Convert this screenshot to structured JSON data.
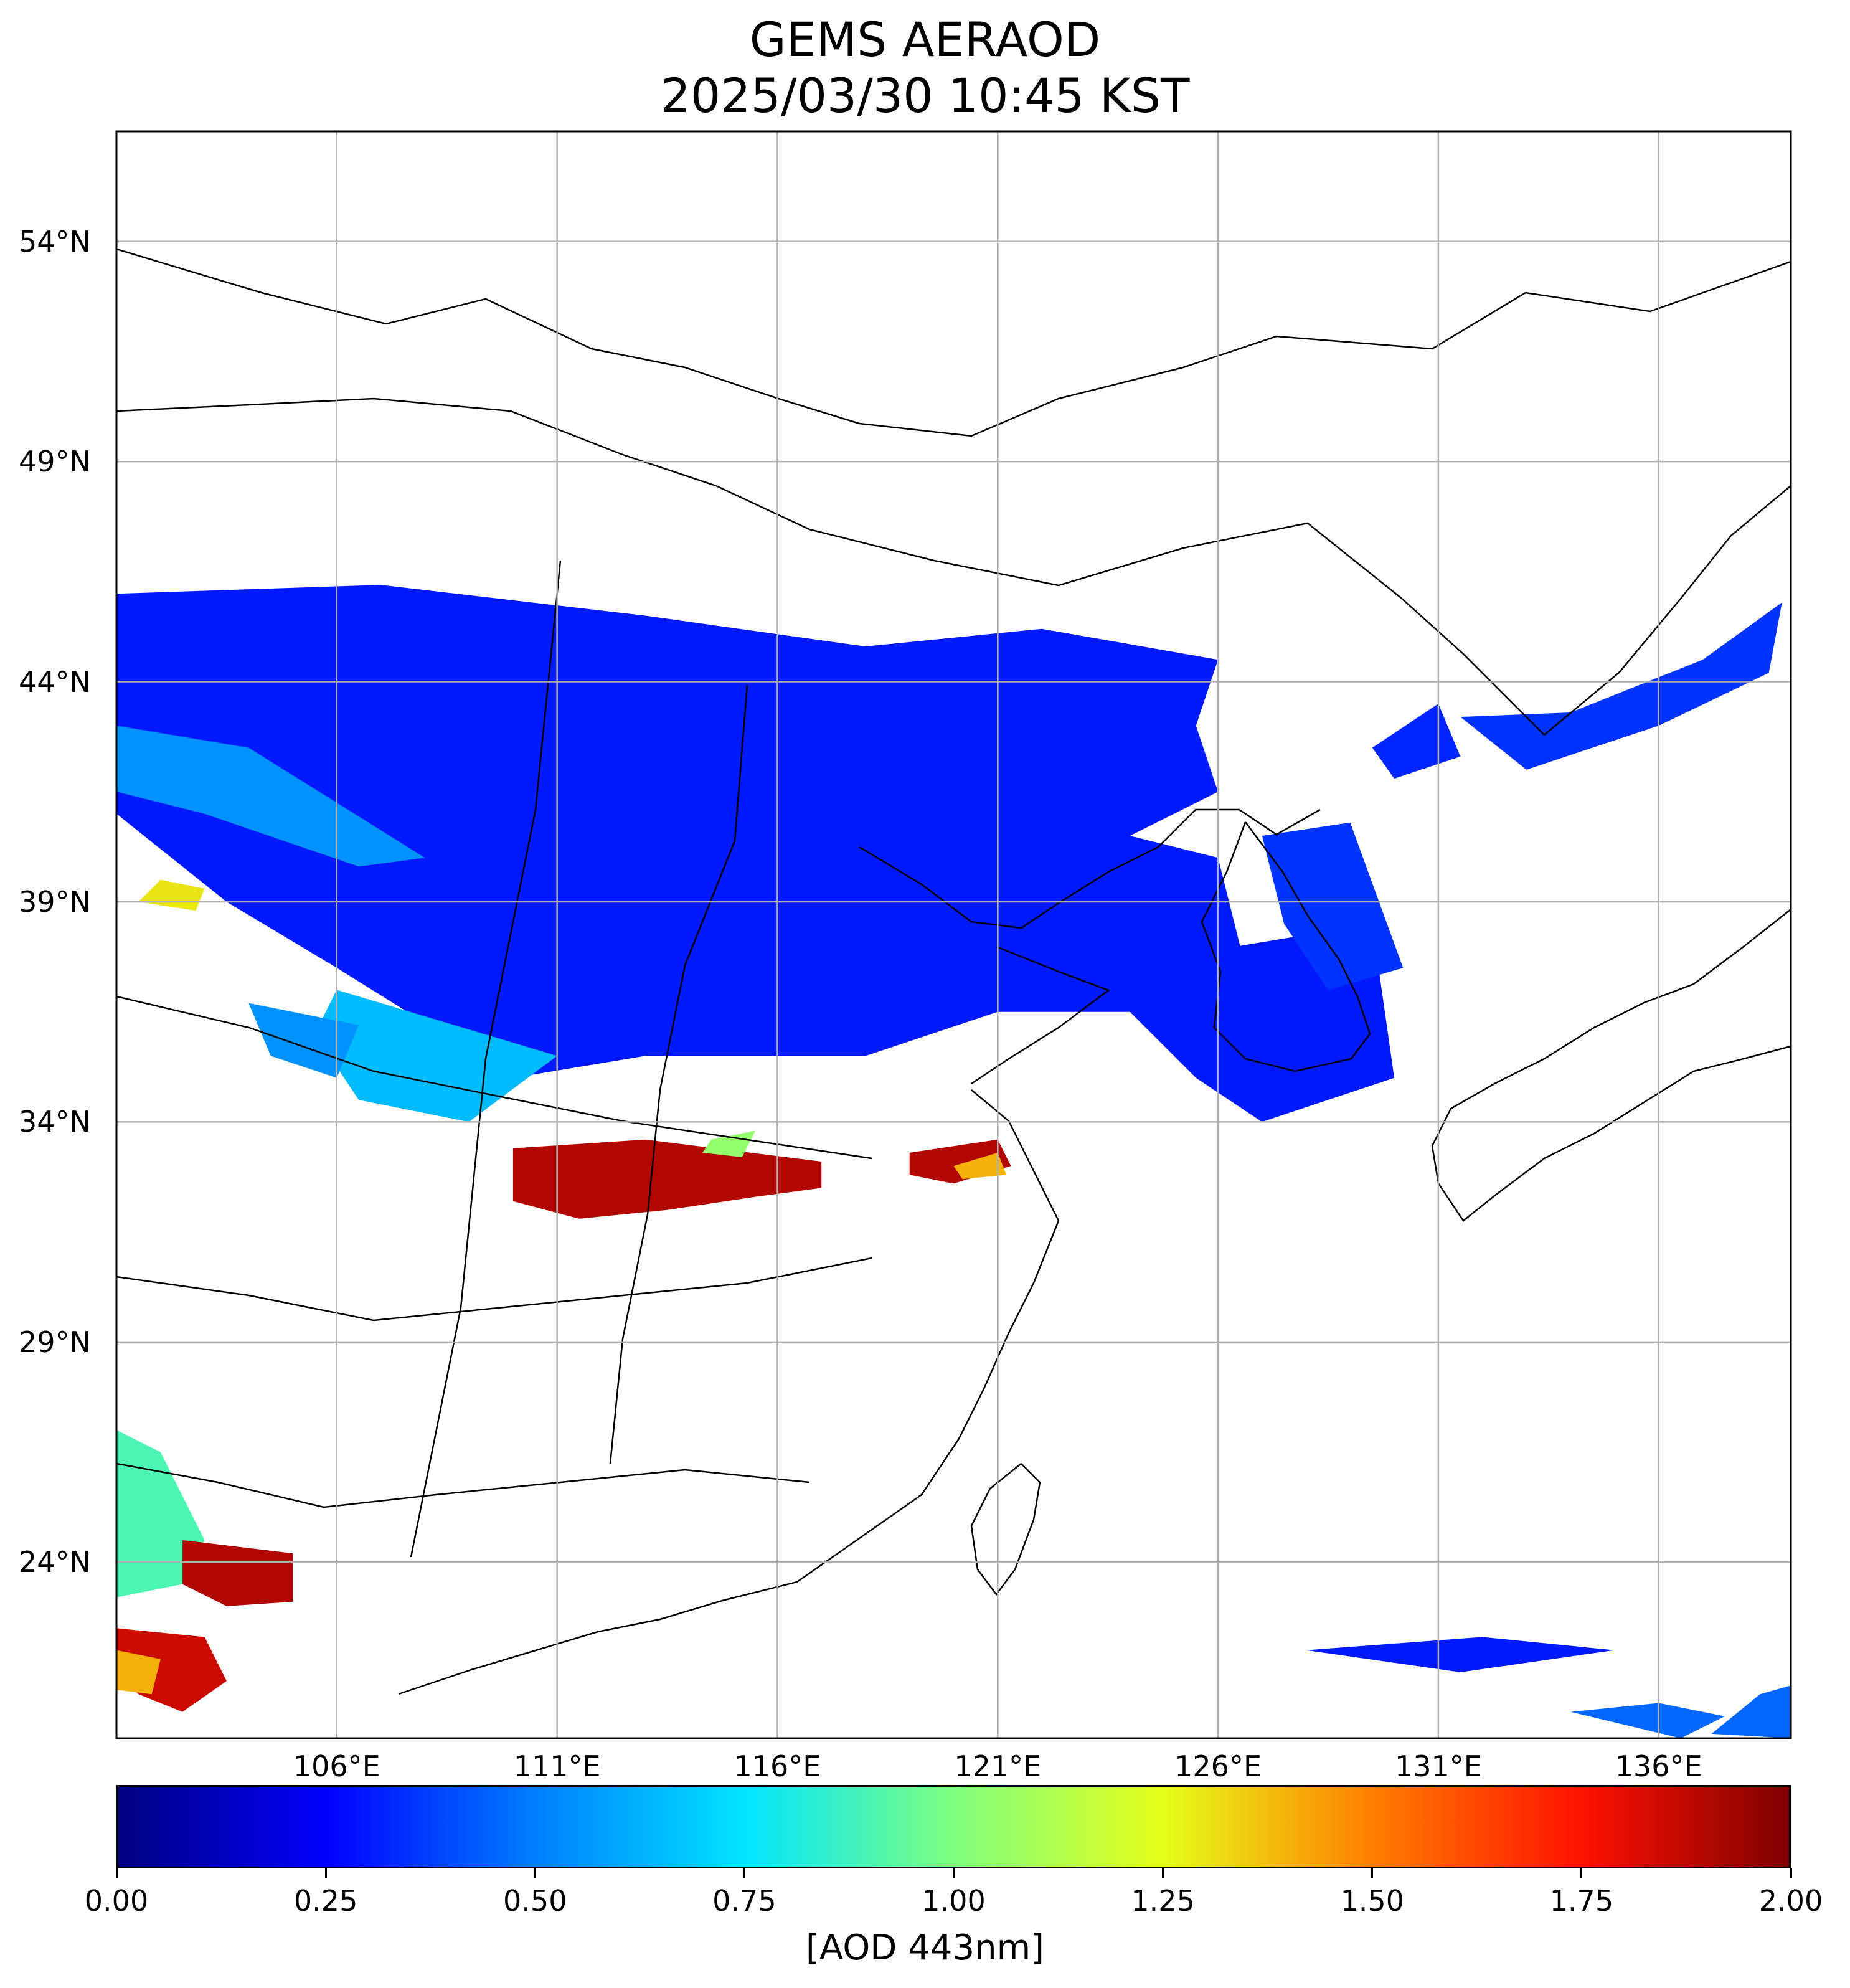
{
  "header": {
    "title": "GEMS AERAOD",
    "subtitle": "2025/03/30 10:45 KST"
  },
  "map": {
    "projection": "equirectangular",
    "lon_range": [
      101.0,
      139.0
    ],
    "lat_range": [
      20.0,
      56.5
    ],
    "gridlines": true,
    "lat_ticks": [
      {
        "value": 54,
        "label": "54°N"
      },
      {
        "value": 49,
        "label": "49°N"
      },
      {
        "value": 44,
        "label": "44°N"
      },
      {
        "value": 39,
        "label": "39°N"
      },
      {
        "value": 34,
        "label": "34°N"
      },
      {
        "value": 29,
        "label": "29°N"
      },
      {
        "value": 24,
        "label": "24°N"
      }
    ],
    "lon_ticks": [
      {
        "value": 106,
        "label": "106°E"
      },
      {
        "value": 111,
        "label": "111°E"
      },
      {
        "value": 116,
        "label": "116°E"
      },
      {
        "value": 121,
        "label": "121°E"
      },
      {
        "value": 126,
        "label": "126°E"
      },
      {
        "value": 131,
        "label": "131°E"
      },
      {
        "value": 136,
        "label": "136°E"
      }
    ],
    "aod_regions": [
      {
        "level": 0.3,
        "poly": [
          [
            101,
            46
          ],
          [
            107,
            46.2
          ],
          [
            113,
            45.5
          ],
          [
            118,
            44.8
          ],
          [
            122,
            45.2
          ],
          [
            126,
            44.5
          ],
          [
            125.5,
            43
          ],
          [
            126,
            41.5
          ],
          [
            124,
            40.5
          ],
          [
            126,
            40
          ],
          [
            126.5,
            38
          ],
          [
            129.5,
            38.5
          ],
          [
            130,
            35
          ],
          [
            127,
            34
          ],
          [
            125.5,
            35
          ],
          [
            124,
            36.5
          ],
          [
            121,
            36.5
          ],
          [
            118,
            35.5
          ],
          [
            113,
            35.5
          ],
          [
            110,
            35
          ],
          [
            106,
            37.5
          ],
          [
            103.5,
            39
          ],
          [
            101,
            41
          ]
        ]
      },
      {
        "level": 0.35,
        "poly": [
          [
            127,
            40.5
          ],
          [
            129,
            40.8
          ],
          [
            130.2,
            37.5
          ],
          [
            128.5,
            37
          ],
          [
            127.5,
            38.5
          ]
        ]
      },
      {
        "level": 0.35,
        "poly": [
          [
            131.5,
            43.2
          ],
          [
            134,
            43.3
          ],
          [
            137,
            44.5
          ],
          [
            138.8,
            45.8
          ],
          [
            138.5,
            44.2
          ],
          [
            136,
            43
          ],
          [
            133,
            42
          ]
        ]
      },
      {
        "level": 0.32,
        "poly": [
          [
            129.5,
            42.5
          ],
          [
            131,
            43.5
          ],
          [
            131.5,
            42.3
          ],
          [
            130,
            41.8
          ]
        ]
      },
      {
        "level": 0.55,
        "poly": [
          [
            101,
            43
          ],
          [
            104,
            42.5
          ],
          [
            108,
            40
          ],
          [
            106.5,
            39.8
          ],
          [
            103,
            41
          ],
          [
            101,
            41.5
          ]
        ]
      },
      {
        "level": 0.65,
        "poly": [
          [
            106,
            37
          ],
          [
            111,
            35.5
          ],
          [
            109,
            34
          ],
          [
            106.5,
            34.5
          ],
          [
            105.5,
            36
          ]
        ]
      },
      {
        "level": 0.55,
        "poly": [
          [
            104,
            36.7
          ],
          [
            106.5,
            36.2
          ],
          [
            106,
            35
          ],
          [
            104.5,
            35.5
          ]
        ]
      },
      {
        "level": 1.3,
        "poly": [
          [
            102,
            39.5
          ],
          [
            103,
            39.3
          ],
          [
            102.8,
            38.8
          ],
          [
            101.5,
            39
          ]
        ]
      },
      {
        "level": 1.9,
        "poly": [
          [
            110,
            33.4
          ],
          [
            113,
            33.6
          ],
          [
            117,
            33.1
          ],
          [
            117,
            32.5
          ],
          [
            115.5,
            32.3
          ],
          [
            113.5,
            32.0
          ],
          [
            111.5,
            31.8
          ],
          [
            110,
            32.2
          ]
        ]
      },
      {
        "level": 1.9,
        "poly": [
          [
            119,
            33.3
          ],
          [
            121,
            33.6
          ],
          [
            121.3,
            33.0
          ],
          [
            120,
            32.6
          ],
          [
            119,
            32.8
          ]
        ]
      },
      {
        "level": 1.05,
        "poly": [
          [
            114.5,
            33.6
          ],
          [
            115.5,
            33.8
          ],
          [
            115.2,
            33.2
          ],
          [
            114.3,
            33.3
          ]
        ]
      },
      {
        "level": 1.4,
        "poly": [
          [
            120,
            33.0
          ],
          [
            121,
            33.3
          ],
          [
            121.2,
            32.8
          ],
          [
            120.2,
            32.7
          ]
        ]
      },
      {
        "level": 0.9,
        "poly": [
          [
            101,
            27
          ],
          [
            102,
            26.5
          ],
          [
            103,
            24.5
          ],
          [
            102.5,
            23.5
          ],
          [
            101,
            23.2
          ]
        ]
      },
      {
        "level": 1.9,
        "poly": [
          [
            102.5,
            24.5
          ],
          [
            105,
            24.2
          ],
          [
            105,
            23.1
          ],
          [
            103.5,
            23.0
          ],
          [
            102.5,
            23.5
          ]
        ]
      },
      {
        "level": 1.85,
        "poly": [
          [
            101,
            22.5
          ],
          [
            103,
            22.3
          ],
          [
            103.5,
            21.3
          ],
          [
            102.5,
            20.6
          ],
          [
            101.5,
            21
          ],
          [
            101,
            21.5
          ]
        ]
      },
      {
        "level": 1.4,
        "poly": [
          [
            101,
            22
          ],
          [
            102,
            21.8
          ],
          [
            101.8,
            21
          ],
          [
            101,
            21.1
          ]
        ]
      },
      {
        "level": 0.45,
        "poly": [
          [
            134,
            20.6
          ],
          [
            136,
            20.8
          ],
          [
            137.5,
            20.5
          ],
          [
            136.5,
            20
          ]
        ]
      },
      {
        "level": 0.45,
        "poly": [
          [
            137.2,
            20.1
          ],
          [
            139,
            20
          ],
          [
            139,
            21.2
          ],
          [
            138.3,
            21
          ]
        ]
      },
      {
        "level": 0.3,
        "poly": [
          [
            128,
            22
          ],
          [
            132,
            22.3
          ],
          [
            135,
            22.0
          ],
          [
            131.5,
            21.5
          ]
        ]
      }
    ]
  },
  "colorbar": {
    "min": 0.0,
    "max": 2.0,
    "colormap": "jet",
    "ticks": [
      "0.00",
      "0.25",
      "0.50",
      "0.75",
      "1.00",
      "1.25",
      "1.50",
      "1.75",
      "2.00"
    ],
    "label": "[AOD 443nm]"
  }
}
